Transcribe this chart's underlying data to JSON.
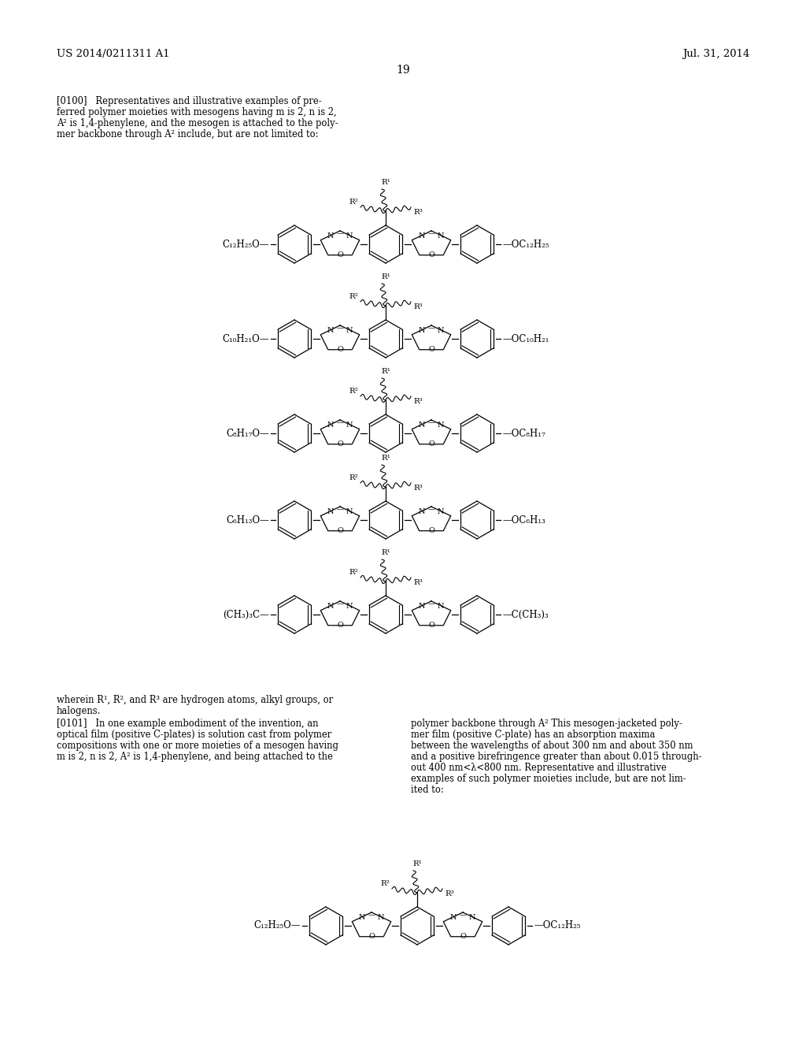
{
  "page_number": "19",
  "header_left": "US 2014/0211311 A1",
  "header_right": "Jul. 31, 2014",
  "background_color": "#ffffff",
  "text_color": "#000000",
  "compounds_top": [
    {
      "left": "C₁₂H₂₅O—",
      "right": "—OC₁₂H₂₅"
    },
    {
      "left": "C₁₀H₂₁O—",
      "right": "—OC₁₀H₂₁"
    },
    {
      "left": "C₈H₁₇O—",
      "right": "—OC₈H₁₇"
    },
    {
      "left": "C₆H₁₃O—",
      "right": "—OC₆H₁₃"
    },
    {
      "left": "(CH₃)₃C—",
      "right": "—C(CH₃)₃"
    }
  ],
  "compound_bottom": {
    "left": "C₁₂H₂₅O—",
    "right": "—OC₁₂H₂₅"
  },
  "para_0100_line1": "[0100]   Representatives and illustrative examples of pre-",
  "para_0100_line2": "ferred polymer moieties with mesogens having m is 2, n is 2,",
  "para_0100_line3": "A² is 1,4-phenylene, and the mesogen is attached to the poly-",
  "para_0100_line4": "mer backbone through A² include, but are not limited to:",
  "wherein_line": "wherein R¹, R², and R³ are hydrogen atoms, alkyl groups, or",
  "wherein_line2": "halogens.",
  "para_0101_l1": "[0101]   In one example embodiment of the invention, an",
  "para_0101_l2": "optical film (positive C-plates) is solution cast from polymer",
  "para_0101_l3": "compositions with one or more moieties of a mesogen having",
  "para_0101_l4": "m is 2, n is 2, A² is 1,4-phenylene, and being attached to the",
  "para_0101_r1": "polymer backbone through A² This mesogen-jacketed poly-",
  "para_0101_r2": "mer film (positive C-plate) has an absorption maxima",
  "para_0101_r3": "between the wavelengths of about 300 nm and about 350 nm",
  "para_0101_r4": "and a positive birefringence greater than about 0.015 through-",
  "para_0101_r5": "out 400 nm<λ<800 nm. Representative and illustrative",
  "para_0101_r6": "examples of such polymer moieties include, but are not lim-",
  "para_0101_r7": "ited to:"
}
